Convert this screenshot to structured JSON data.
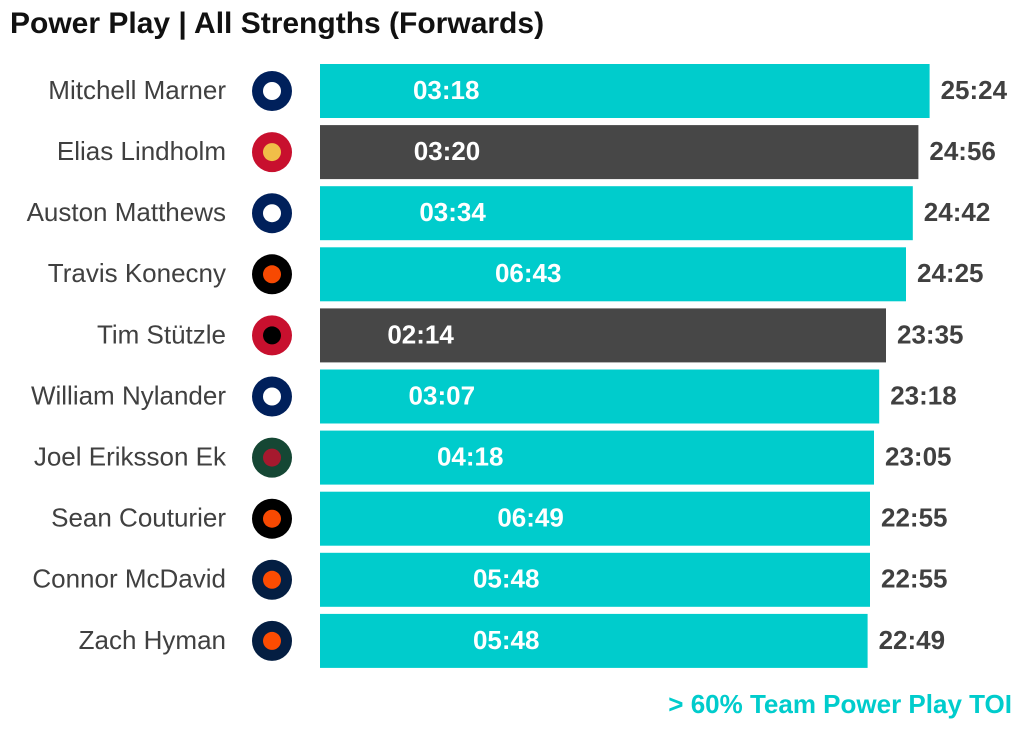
{
  "chart_data": {
    "type": "bar",
    "orientation": "horizontal",
    "title": "Power Play | All Strengths (Forwards)",
    "categories": [
      "Mitchell Marner",
      "Elias Lindholm",
      "Auston Matthews",
      "Travis Konecny",
      "Tim Stützle",
      "William Nylander",
      "Joel Eriksson Ek",
      "Sean Couturier",
      "Connor McDavid",
      "Zach Hyman"
    ],
    "values": [
      1524,
      1496,
      1482,
      1465,
      1415,
      1398,
      1385,
      1375,
      1375,
      1369
    ],
    "value_labels": [
      "25:24",
      "24:56",
      "24:42",
      "24:25",
      "23:35",
      "23:18",
      "23:05",
      "22:55",
      "22:55",
      "22:49"
    ],
    "inner_values": [
      198,
      200,
      214,
      403,
      134,
      187,
      258,
      409,
      348,
      348
    ],
    "inner_value_labels": [
      "03:18",
      "03:20",
      "03:34",
      "06:43",
      "02:14",
      "03:07",
      "04:18",
      "06:49",
      "05:48",
      "05:48"
    ],
    "colors": [
      "#00cccc",
      "#474747",
      "#00cccc",
      "#00cccc",
      "#474747",
      "#00cccc",
      "#00cccc",
      "#00cccc",
      "#00cccc",
      "#00cccc"
    ],
    "note": "> 60% Team Power Play TOI",
    "note_color": "#00cccc"
  }
}
